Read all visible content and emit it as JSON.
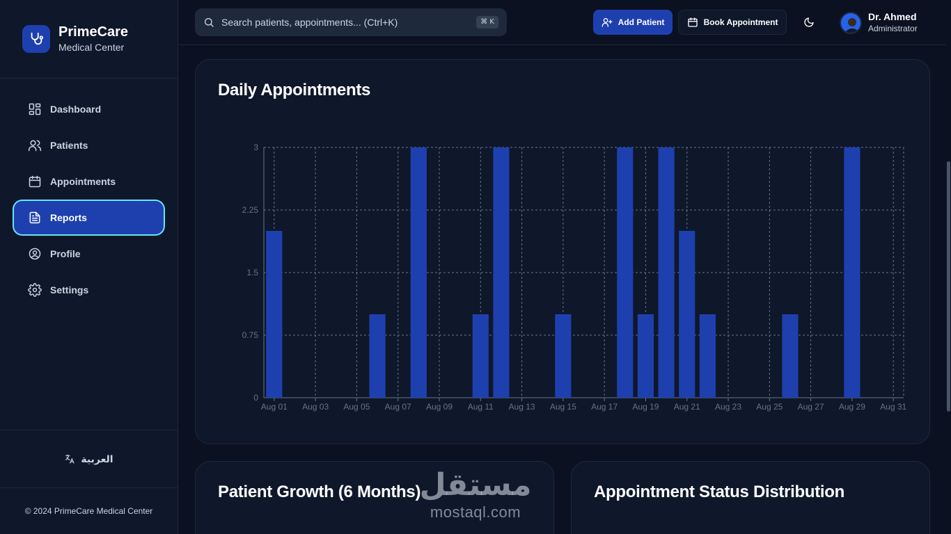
{
  "brand": {
    "name": "PrimeCare",
    "subtitle": "Medical Center"
  },
  "nav": [
    {
      "label": "Dashboard",
      "icon": "dashboard-icon",
      "active": false
    },
    {
      "label": "Patients",
      "icon": "users-icon",
      "active": false
    },
    {
      "label": "Appointments",
      "icon": "calendar-icon",
      "active": false
    },
    {
      "label": "Reports",
      "icon": "file-text-icon",
      "active": true
    },
    {
      "label": "Profile",
      "icon": "user-circle-icon",
      "active": false
    },
    {
      "label": "Settings",
      "icon": "gear-icon",
      "active": false
    }
  ],
  "language": {
    "label": "العربية"
  },
  "footer": {
    "copyright": "© 2024 PrimeCare Medical Center"
  },
  "header": {
    "search_placeholder": "Search patients, appointments... (Ctrl+K)",
    "shortcut": "⌘ K",
    "add_patient": "Add Patient",
    "book_appointment": "Book Appointment"
  },
  "user": {
    "name": "Dr. Ahmed",
    "role": "Administrator"
  },
  "cards": {
    "daily_title": "Daily Appointments",
    "growth_title": "Patient Growth (6 Months)",
    "status_title": "Appointment Status Distribution"
  },
  "watermark": {
    "arabic": "مستقل",
    "latin": "mostaql.com"
  },
  "colors": {
    "accent": "#1e40af",
    "bar": "#1e40af",
    "background": "#0b1120",
    "card": "#0f172a",
    "focus_ring": "#67e8f9"
  },
  "chart_data": {
    "type": "bar",
    "title": "Daily Appointments",
    "xlabel": "",
    "ylabel": "",
    "ylim": [
      0,
      3
    ],
    "yticks": [
      "0",
      "0.75",
      "1.5",
      "2.25",
      "3"
    ],
    "xticks": [
      "Aug 01",
      "Aug 03",
      "Aug 05",
      "Aug 07",
      "Aug 09",
      "Aug 11",
      "Aug 13",
      "Aug 15",
      "Aug 17",
      "Aug 19",
      "Aug 21",
      "Aug 23",
      "Aug 25",
      "Aug 27",
      "Aug 29",
      "Aug 31"
    ],
    "grid": true,
    "categories": [
      "Aug 01",
      "Aug 02",
      "Aug 03",
      "Aug 04",
      "Aug 05",
      "Aug 06",
      "Aug 07",
      "Aug 08",
      "Aug 09",
      "Aug 10",
      "Aug 11",
      "Aug 12",
      "Aug 13",
      "Aug 14",
      "Aug 15",
      "Aug 16",
      "Aug 17",
      "Aug 18",
      "Aug 19",
      "Aug 20",
      "Aug 21",
      "Aug 22",
      "Aug 23",
      "Aug 24",
      "Aug 25",
      "Aug 26",
      "Aug 27",
      "Aug 28",
      "Aug 29",
      "Aug 30",
      "Aug 31"
    ],
    "values": [
      2,
      0,
      0,
      0,
      0,
      1,
      0,
      3,
      0,
      0,
      1,
      3,
      0,
      0,
      1,
      0,
      0,
      3,
      1,
      3,
      2,
      1,
      0,
      0,
      0,
      1,
      0,
      0,
      3,
      0,
      0
    ]
  }
}
